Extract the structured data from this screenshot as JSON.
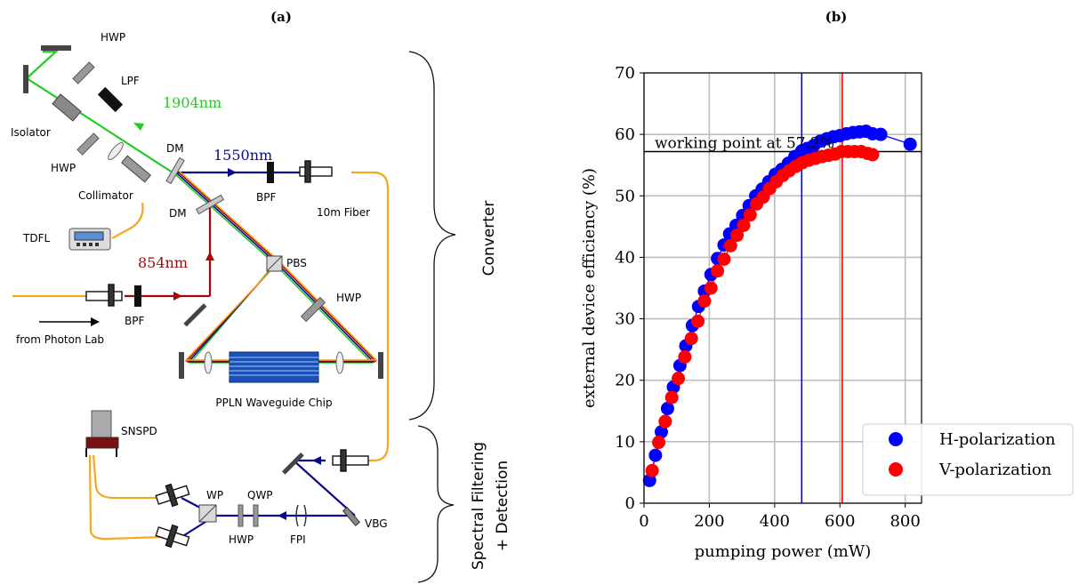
{
  "panel_a": {
    "label": "(a)",
    "components": {
      "hwp_top": "HWP",
      "lpf": "LPF",
      "isolator": "Isolator",
      "hwp_left": "HWP",
      "collimator": "Collimator",
      "tdfl": "TDFL",
      "dm_top": "DM",
      "dm_mid": "DM",
      "bpf_top": "BPF",
      "fiber": "10m Fiber",
      "pbs": "PBS",
      "hwp_right": "HWP",
      "bpf_left": "BPF",
      "from_lab": "from Photon Lab",
      "chip": "PPLN Waveguide Chip",
      "snspd": "SNSPD",
      "wp": "WP",
      "qwp": "QWP",
      "hwp_bottom": "HWP",
      "fpi": "FPI",
      "vbg": "VBG"
    },
    "wavelengths": {
      "pump": "1904nm",
      "telecom": "1550nm",
      "input": "854nm"
    },
    "braces": {
      "converter": "Converter",
      "filtering_line1": "Spectral Filtering",
      "filtering_line2": "+ Detection"
    }
  },
  "panel_b": {
    "label": "(b)",
    "annotation": "working point at 57.2%",
    "legend": [
      "H-polarization",
      "V-polarization"
    ]
  },
  "colors": {
    "pump": "#22cc22",
    "telecom": "#0a0a90",
    "input": "#9e0a0a",
    "fiber": "#f5a623",
    "h_series": "#0000ff",
    "v_series": "#ff0000"
  },
  "chart_data": {
    "type": "scatter",
    "title": "",
    "xlabel": "pumping power (mW)",
    "ylabel": "external device efficiency (%)",
    "xlim": [
      0,
      850
    ],
    "ylim": [
      0,
      70
    ],
    "xticks": [
      0,
      200,
      400,
      600,
      800
    ],
    "yticks": [
      0,
      10,
      20,
      30,
      40,
      50,
      60,
      70
    ],
    "grid": true,
    "legend_position": "bottom-right",
    "working_point": 57.2,
    "vlines": [
      {
        "x": 483,
        "color": "#0000ff"
      },
      {
        "x": 607,
        "color": "#ff0000"
      }
    ],
    "series": [
      {
        "name": "H-polarization",
        "color": "#0000ff",
        "x": [
          17,
          35,
          53,
          72,
          90,
          110,
          128,
          148,
          167,
          185,
          205,
          225,
          245,
          262,
          282,
          302,
          322,
          342,
          362,
          382,
          402,
          422,
          442,
          462,
          483,
          500,
          520,
          540,
          560,
          580,
          600,
          620,
          640,
          660,
          680,
          700,
          725,
          815
        ],
        "y": [
          3.7,
          7.8,
          11.6,
          15.4,
          18.9,
          22.4,
          25.6,
          28.9,
          32.0,
          34.5,
          37.2,
          39.8,
          42.0,
          43.8,
          45.2,
          46.8,
          48.4,
          50.0,
          51.1,
          52.3,
          53.5,
          54.3,
          55.3,
          56.4,
          57.3,
          57.7,
          58.2,
          58.9,
          59.3,
          59.6,
          59.8,
          60.1,
          60.3,
          60.4,
          60.5,
          60.1,
          60.0,
          58.4
        ]
      },
      {
        "name": "V-polarization",
        "color": "#ff0000",
        "x": [
          25,
          45,
          65,
          85,
          105,
          125,
          145,
          165,
          185,
          205,
          225,
          245,
          265,
          285,
          305,
          325,
          345,
          365,
          385,
          405,
          425,
          445,
          465,
          485,
          505,
          525,
          545,
          565,
          585,
          605,
          625,
          645,
          665,
          685,
          700
        ],
        "y": [
          5.3,
          9.9,
          13.3,
          17.2,
          20.3,
          23.8,
          26.8,
          29.6,
          32.9,
          35.0,
          37.8,
          39.7,
          41.9,
          43.6,
          45.2,
          46.9,
          48.7,
          49.8,
          51.2,
          52.3,
          53.3,
          54.1,
          54.8,
          55.4,
          55.8,
          56.1,
          56.4,
          56.6,
          56.8,
          57.2,
          57.2,
          57.2,
          57.2,
          56.9,
          56.7
        ]
      }
    ]
  }
}
